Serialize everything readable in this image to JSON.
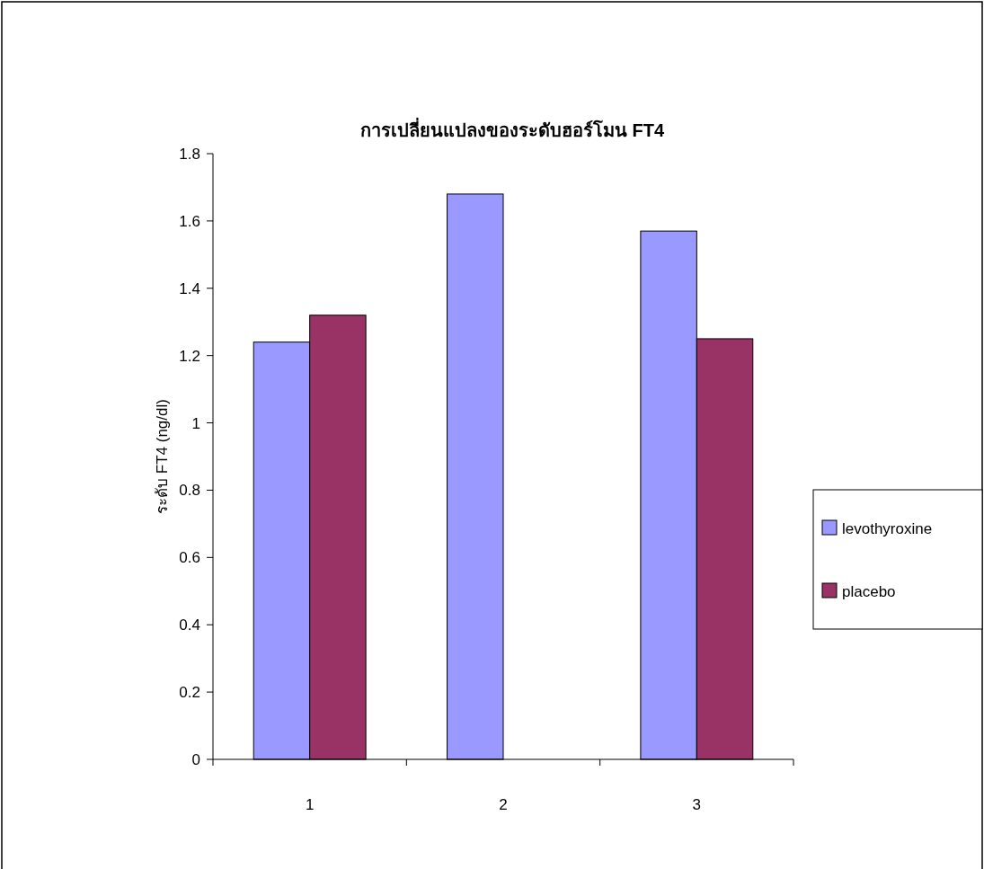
{
  "chart_data": {
    "type": "bar",
    "title": "การเปลี่ยนแปลงของระดับฮอร์โมน FT4",
    "ylabel": "ระดับ FT4 (ng/dl)",
    "categories": [
      "1",
      "2",
      "3"
    ],
    "series": [
      {
        "name": "levothyroxine",
        "color": "#9999ff",
        "values": [
          1.24,
          1.68,
          1.57
        ]
      },
      {
        "name": "placebo",
        "color": "#993366",
        "values": [
          1.32,
          null,
          1.25
        ]
      }
    ],
    "ylim": [
      0,
      1.8
    ],
    "yticks": [
      0,
      0.2,
      0.4,
      0.6,
      0.8,
      1,
      1.2,
      1.4,
      1.6,
      1.8
    ],
    "grid": false,
    "legend": "right"
  }
}
